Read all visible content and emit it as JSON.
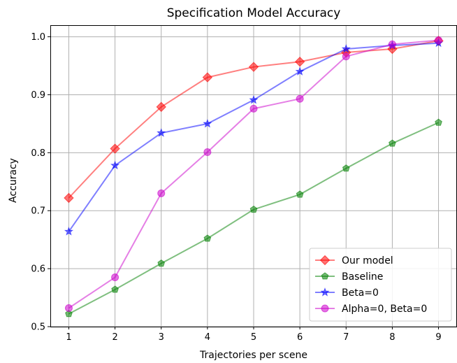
{
  "chart_data": {
    "type": "line",
    "title": "Specification Model Accuracy",
    "xlabel": "Trajectories per scene",
    "ylabel": "Accuracy",
    "x": [
      1,
      2,
      3,
      4,
      5,
      6,
      7,
      8,
      9
    ],
    "xlim": [
      0.6,
      9.4
    ],
    "ylim": [
      0.5,
      1.02
    ],
    "xticks": [
      1,
      2,
      3,
      4,
      5,
      6,
      7,
      8,
      9
    ],
    "yticks": [
      0.5,
      0.6,
      0.7,
      0.8,
      0.9,
      1.0
    ],
    "ytick_labels": [
      "0.5",
      "0.6",
      "0.7",
      "0.8",
      "0.9",
      "1.0"
    ],
    "grid": true,
    "legend_position": "bottom-right",
    "series": [
      {
        "name": "Our model",
        "color": "#ff0000",
        "marker": "diamond",
        "values": [
          0.722,
          0.807,
          0.879,
          0.93,
          0.948,
          0.957,
          0.973,
          0.979,
          0.993
        ]
      },
      {
        "name": "Baseline",
        "color": "#008000",
        "marker": "pentagon",
        "values": [
          0.522,
          0.564,
          0.609,
          0.652,
          0.702,
          0.728,
          0.773,
          0.816,
          0.852
        ]
      },
      {
        "name": "Beta=0",
        "color": "#0000ff",
        "marker": "star",
        "values": [
          0.664,
          0.778,
          0.834,
          0.85,
          0.891,
          0.94,
          0.979,
          0.985,
          0.989
        ]
      },
      {
        "name": "Alpha=0, Beta=0",
        "color": "#cc00cc",
        "marker": "circle",
        "values": [
          0.532,
          0.585,
          0.73,
          0.801,
          0.876,
          0.893,
          0.966,
          0.987,
          0.994
        ]
      }
    ]
  }
}
